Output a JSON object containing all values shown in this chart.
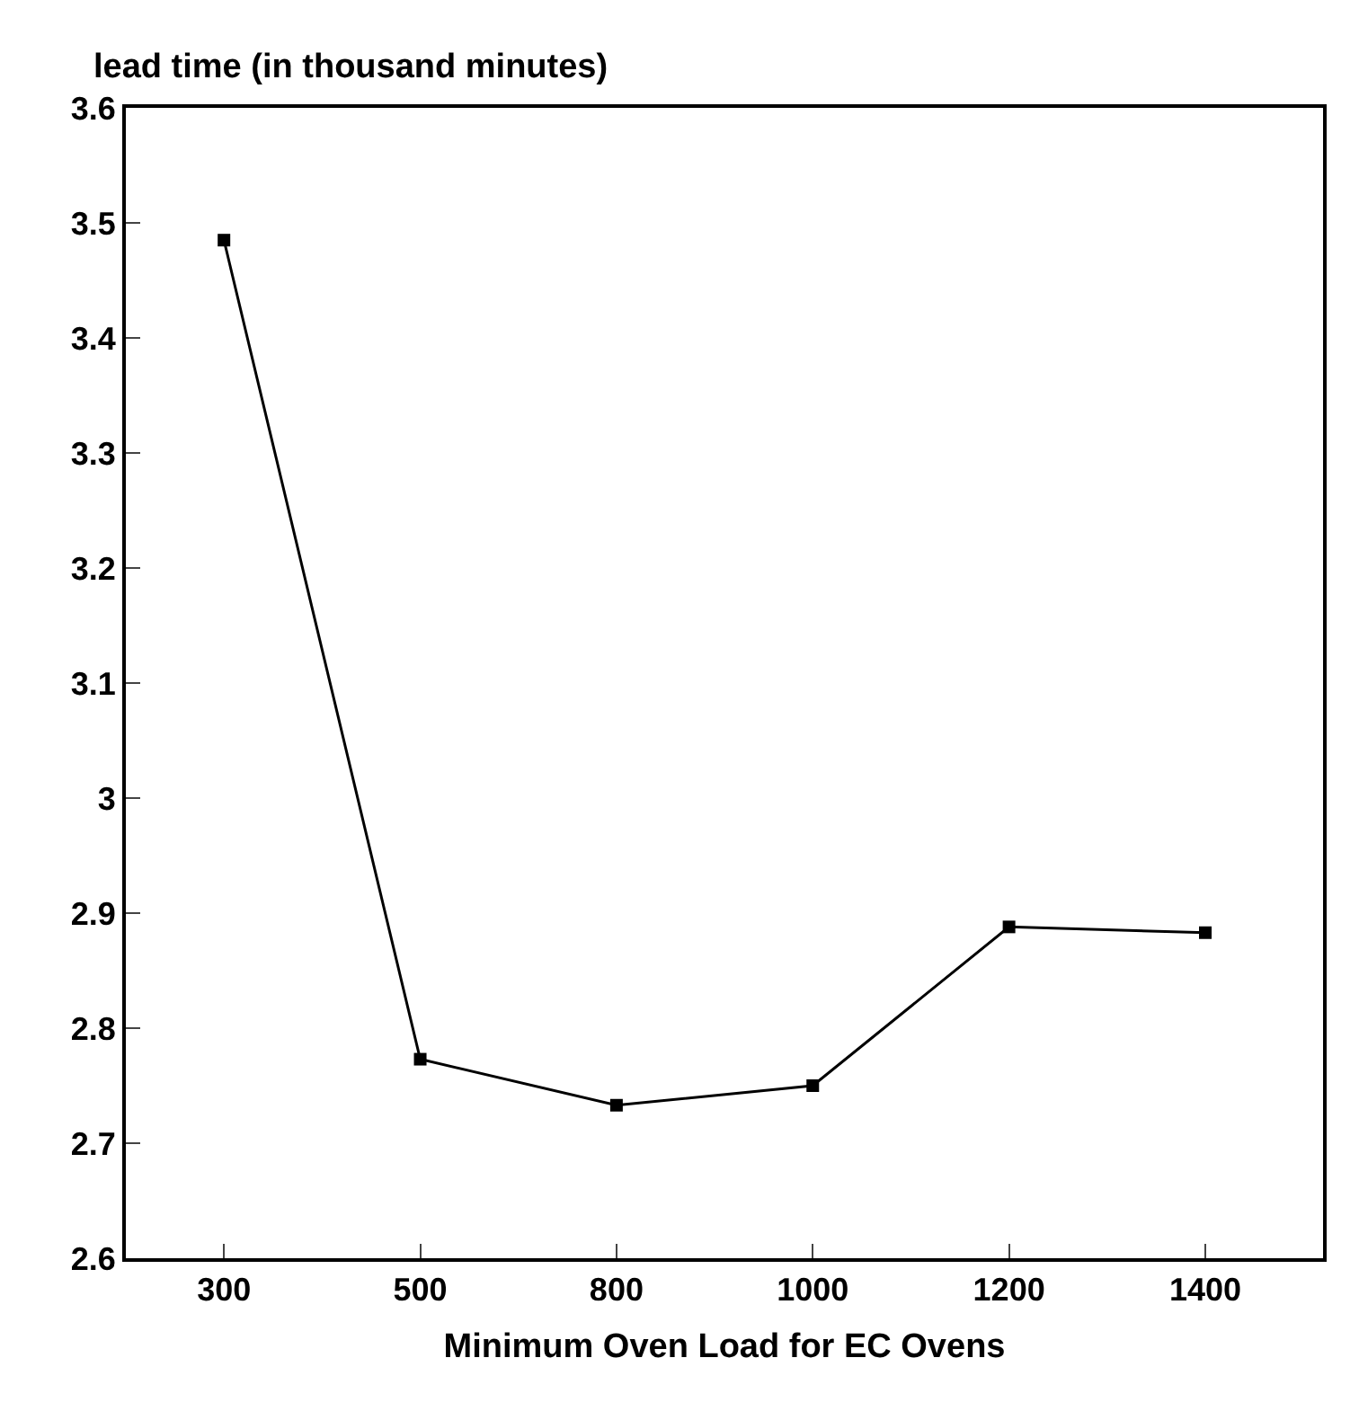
{
  "chart_data": {
    "type": "line",
    "ylabel": "lead time (in thousand minutes)",
    "xlabel": "Minimum Oven Load for EC Ovens",
    "categories": [
      "300",
      "500",
      "800",
      "1000",
      "1200",
      "1400"
    ],
    "series": [
      {
        "color": "#000000",
        "values": [
          3.485,
          2.773,
          2.733,
          2.75,
          2.888,
          2.883
        ]
      }
    ],
    "ylim": [
      2.6,
      3.6
    ],
    "yticks": [
      2.6,
      2.7,
      2.8,
      2.9,
      3,
      3.1,
      3.2,
      3.3,
      3.4,
      3.5,
      3.6
    ],
    "legend": false,
    "marker": "square",
    "line_style": "solid"
  }
}
